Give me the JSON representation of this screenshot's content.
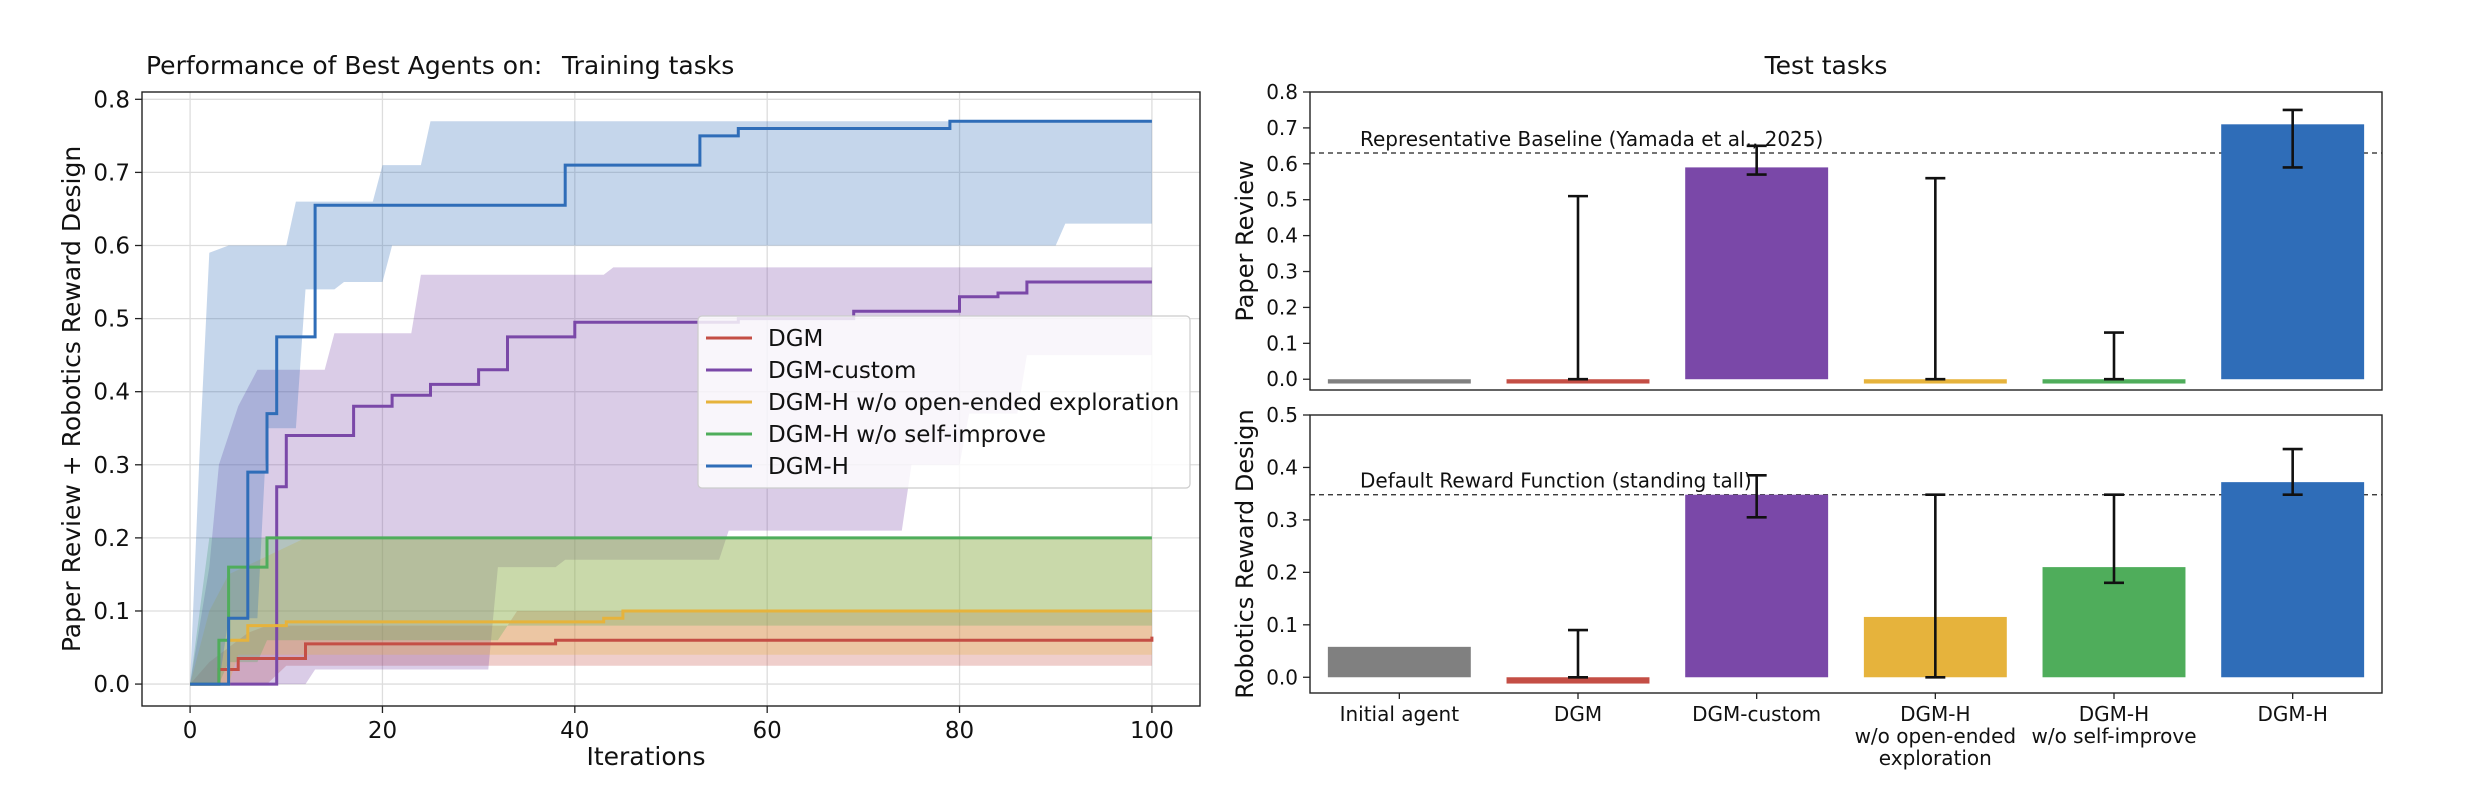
{
  "figure": {
    "heading_left": "Performance of Best Agents on:",
    "colors": {
      "DGM": "#c44e45",
      "DGM-custom": "#7a48a8",
      "DGM-H w/o open-ended exploration": "#e6b33c",
      "DGM-H w/o self-improve": "#4fad5b",
      "DGM-H": "#2f6db8",
      "Initial agent": "#808080"
    }
  },
  "chart_data": [
    {
      "type": "line",
      "title": "Training tasks",
      "xlabel": "Iterations",
      "ylabel": "Paper Review + Robotics Reward Design",
      "xlim": [
        -5,
        105
      ],
      "ylim": [
        -0.03,
        0.81
      ],
      "xticks": [
        0,
        20,
        40,
        60,
        80,
        100
      ],
      "yticks": [
        0.0,
        0.1,
        0.2,
        0.3,
        0.4,
        0.5,
        0.6,
        0.7,
        0.8
      ],
      "grid": true,
      "legend_position": "center-right",
      "step": true,
      "series": [
        {
          "name": "DGM",
          "line": [
            [
              0,
              0
            ],
            [
              2,
              0
            ],
            [
              3,
              0.02
            ],
            [
              5,
              0.035
            ],
            [
              8,
              0.035
            ],
            [
              12,
              0.055
            ],
            [
              33,
              0.055
            ],
            [
              38,
              0.06
            ],
            [
              88,
              0.06
            ],
            [
              100,
              0.065
            ]
          ],
          "upper": [
            [
              0,
              0
            ],
            [
              2,
              0.03
            ],
            [
              4,
              0.05
            ],
            [
              6,
              0.07
            ],
            [
              8,
              0.08
            ],
            [
              33,
              0.08
            ],
            [
              34,
              0.1
            ],
            [
              100,
              0.1
            ]
          ],
          "lower": [
            [
              0,
              0
            ],
            [
              8,
              0
            ],
            [
              10,
              0.025
            ],
            [
              100,
              0.025
            ]
          ]
        },
        {
          "name": "DGM-custom",
          "line": [
            [
              0,
              0
            ],
            [
              8,
              0
            ],
            [
              9,
              0.27
            ],
            [
              10,
              0.34
            ],
            [
              14,
              0.34
            ],
            [
              17,
              0.38
            ],
            [
              20,
              0.38
            ],
            [
              21,
              0.395
            ],
            [
              24,
              0.395
            ],
            [
              25,
              0.41
            ],
            [
              29,
              0.41
            ],
            [
              30,
              0.43
            ],
            [
              32,
              0.43
            ],
            [
              33,
              0.475
            ],
            [
              39,
              0.475
            ],
            [
              40,
              0.495
            ],
            [
              56,
              0.495
            ],
            [
              57,
              0.5
            ],
            [
              68,
              0.5
            ],
            [
              69,
              0.51
            ],
            [
              79,
              0.51
            ],
            [
              80,
              0.53
            ],
            [
              83,
              0.53
            ],
            [
              84,
              0.535
            ],
            [
              86,
              0.535
            ],
            [
              87,
              0.55
            ],
            [
              100,
              0.55
            ]
          ],
          "upper": [
            [
              0,
              0
            ],
            [
              2,
              0.16
            ],
            [
              3,
              0.3
            ],
            [
              5,
              0.38
            ],
            [
              7,
              0.43
            ],
            [
              14,
              0.43
            ],
            [
              15,
              0.48
            ],
            [
              23,
              0.48
            ],
            [
              24,
              0.56
            ],
            [
              43,
              0.56
            ],
            [
              44,
              0.57
            ],
            [
              100,
              0.57
            ]
          ],
          "lower": [
            [
              0,
              0
            ],
            [
              12,
              0
            ],
            [
              13,
              0.02
            ],
            [
              31,
              0.02
            ],
            [
              32,
              0.16
            ],
            [
              38,
              0.16
            ],
            [
              39,
              0.17
            ],
            [
              55,
              0.17
            ],
            [
              56,
              0.21
            ],
            [
              74,
              0.21
            ],
            [
              75,
              0.3
            ],
            [
              80,
              0.3
            ],
            [
              81,
              0.37
            ],
            [
              86,
              0.37
            ],
            [
              87,
              0.45
            ],
            [
              100,
              0.45
            ]
          ]
        },
        {
          "name": "DGM-H w/o open-ended exploration",
          "line": [
            [
              0,
              0
            ],
            [
              2,
              0
            ],
            [
              4,
              0.06
            ],
            [
              6,
              0.08
            ],
            [
              9,
              0.08
            ],
            [
              10,
              0.085
            ],
            [
              42,
              0.085
            ],
            [
              43,
              0.09
            ],
            [
              44,
              0.09
            ],
            [
              45,
              0.1
            ],
            [
              100,
              0.1
            ]
          ],
          "upper": [
            [
              0,
              0
            ],
            [
              2,
              0.1
            ],
            [
              4,
              0.15
            ],
            [
              12,
              0.2
            ],
            [
              100,
              0.2
            ]
          ],
          "lower": [
            [
              0,
              0
            ],
            [
              4,
              0
            ],
            [
              5,
              0.04
            ],
            [
              100,
              0.04
            ]
          ]
        },
        {
          "name": "DGM-H w/o self-improve",
          "line": [
            [
              0,
              0
            ],
            [
              2,
              0
            ],
            [
              3,
              0.06
            ],
            [
              4,
              0.16
            ],
            [
              7,
              0.16
            ],
            [
              8,
              0.2
            ],
            [
              100,
              0.2
            ]
          ],
          "upper": [
            [
              0,
              0
            ],
            [
              2,
              0.2
            ],
            [
              100,
              0.2
            ]
          ],
          "lower": [
            [
              0,
              0
            ],
            [
              3,
              0
            ],
            [
              4,
              0.03
            ],
            [
              7,
              0.03
            ],
            [
              8,
              0.06
            ],
            [
              32,
              0.06
            ],
            [
              33,
              0.08
            ],
            [
              100,
              0.08
            ]
          ]
        },
        {
          "name": "DGM-H",
          "line": [
            [
              0,
              0
            ],
            [
              3,
              0
            ],
            [
              4,
              0.09
            ],
            [
              5,
              0.09
            ],
            [
              6,
              0.29
            ],
            [
              7,
              0.29
            ],
            [
              8,
              0.37
            ],
            [
              9,
              0.475
            ],
            [
              12,
              0.475
            ],
            [
              13,
              0.655
            ],
            [
              38,
              0.655
            ],
            [
              39,
              0.71
            ],
            [
              52,
              0.71
            ],
            [
              53,
              0.75
            ],
            [
              56,
              0.75
            ],
            [
              57,
              0.76
            ],
            [
              78,
              0.76
            ],
            [
              79,
              0.77
            ],
            [
              100,
              0.77
            ]
          ],
          "upper": [
            [
              0,
              0
            ],
            [
              1,
              0.32
            ],
            [
              2,
              0.59
            ],
            [
              4,
              0.6
            ],
            [
              10,
              0.6
            ],
            [
              11,
              0.66
            ],
            [
              19,
              0.66
            ],
            [
              20,
              0.71
            ],
            [
              24,
              0.71
            ],
            [
              25,
              0.77
            ],
            [
              100,
              0.77
            ]
          ],
          "lower": [
            [
              0,
              0
            ],
            [
              3,
              0
            ],
            [
              4,
              0.09
            ],
            [
              7,
              0.09
            ],
            [
              8,
              0.35
            ],
            [
              11,
              0.35
            ],
            [
              12,
              0.54
            ],
            [
              15,
              0.54
            ],
            [
              16,
              0.55
            ],
            [
              20,
              0.55
            ],
            [
              21,
              0.6
            ],
            [
              90,
              0.6
            ],
            [
              91,
              0.63
            ],
            [
              100,
              0.63
            ]
          ]
        }
      ]
    },
    {
      "type": "bar",
      "title": "Test tasks",
      "ylabel": "Paper Review",
      "ylim": [
        -0.03,
        0.8
      ],
      "yticks": [
        0.0,
        0.1,
        0.2,
        0.3,
        0.4,
        0.5,
        0.6,
        0.7,
        0.8
      ],
      "grid": false,
      "categories": [
        "Initial agent",
        "DGM",
        "DGM-custom",
        "DGM-H w/o open-ended exploration",
        "DGM-H w/o self-improve",
        "DGM-H"
      ],
      "values": [
        0.0,
        0.0,
        0.59,
        0.0,
        0.0,
        0.71
      ],
      "error_low": [
        0.0,
        0.0,
        0.57,
        0.0,
        0.0,
        0.59
      ],
      "error_high": [
        0.0,
        0.51,
        0.65,
        0.56,
        0.13,
        0.75
      ],
      "reference_line": {
        "value": 0.63,
        "label": "Representative Baseline (Yamada et al., 2025)"
      }
    },
    {
      "type": "bar",
      "ylabel": "Robotics Reward Design",
      "ylim": [
        -0.03,
        0.5
      ],
      "yticks": [
        0.0,
        0.1,
        0.2,
        0.3,
        0.4,
        0.5
      ],
      "grid": false,
      "categories": [
        "Initial agent",
        "DGM",
        "DGM-custom",
        "DGM-H w/o open-ended exploration",
        "DGM-H w/o self-improve",
        "DGM-H"
      ],
      "tick_labels": [
        [
          "Initial agent"
        ],
        [
          "DGM"
        ],
        [
          "DGM-custom"
        ],
        [
          "DGM-H",
          "w/o open-ended",
          "exploration"
        ],
        [
          "DGM-H",
          "w/o self-improve"
        ],
        [
          "DGM-H"
        ]
      ],
      "values": [
        0.058,
        0.0,
        0.348,
        0.115,
        0.21,
        0.372
      ],
      "error_low": [
        0.058,
        0.0,
        0.305,
        0.0,
        0.18,
        0.348
      ],
      "error_high": [
        0.058,
        0.09,
        0.385,
        0.348,
        0.348,
        0.435
      ],
      "reference_line": {
        "value": 0.348,
        "label": "Default Reward Function (standing tall)"
      }
    }
  ]
}
